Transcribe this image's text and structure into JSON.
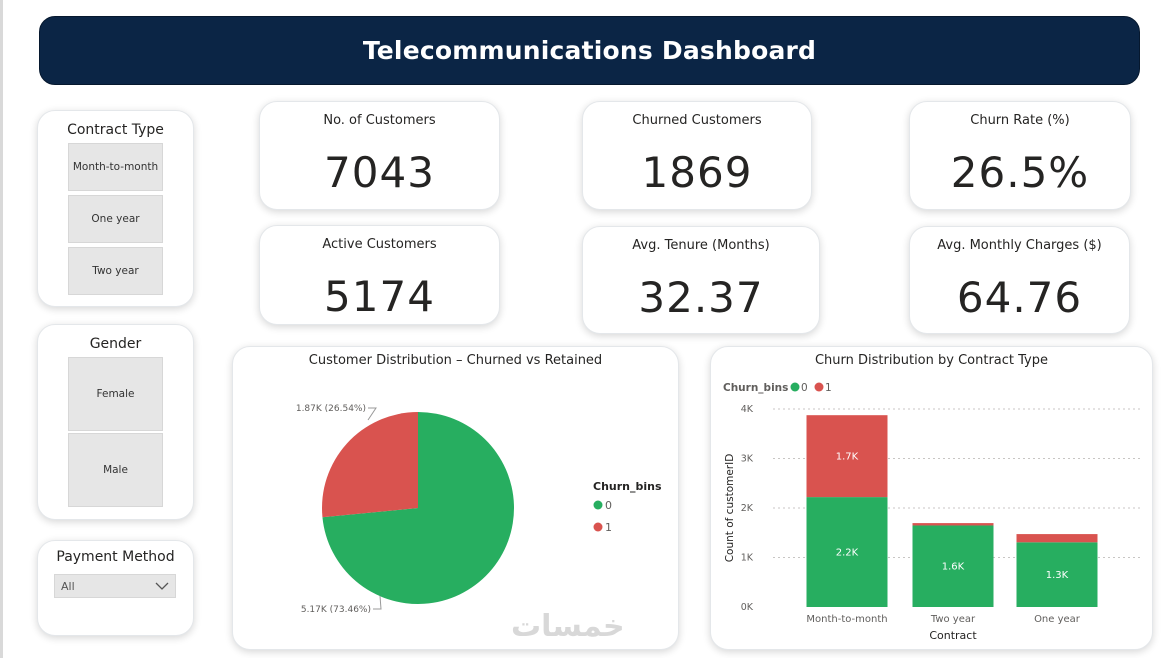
{
  "header": {
    "title": "Telecommunications Dashboard"
  },
  "slicers": {
    "contract": {
      "title": "Contract Type",
      "items": [
        "Month-to-month",
        "One year",
        "Two year"
      ]
    },
    "gender": {
      "title": "Gender",
      "items": [
        "Female",
        "Male"
      ]
    },
    "payment": {
      "title": "Payment Method",
      "selected": "All"
    }
  },
  "kpis": {
    "customers": {
      "label": "No. of Customers",
      "value": "7043"
    },
    "churned": {
      "label": "Churned Customers",
      "value": "1869"
    },
    "churn_rate": {
      "label": "Churn Rate (%)",
      "value": "26.5%"
    },
    "active": {
      "label": "Active Customers",
      "value": "5174"
    },
    "tenure": {
      "label": "Avg. Tenure (Months)",
      "value": "32.37"
    },
    "charges": {
      "label": "Avg. Monthly Charges ($)",
      "value": "64.76"
    }
  },
  "colors": {
    "retained": "#27ae60",
    "churned": "#d9534f",
    "header": "#0b2545"
  },
  "watermark": "خمسات",
  "chart_data": [
    {
      "type": "pie",
      "title": "Customer Distribution – Churned vs Retained",
      "legend_title": "Churn_bins",
      "legend_position": "right",
      "slices": [
        {
          "name": "0",
          "value": 5174,
          "label": "5.17K (73.46%)",
          "color": "#27ae60"
        },
        {
          "name": "1",
          "value": 1869,
          "label": "1.87K (26.54%)",
          "color": "#d9534f"
        }
      ]
    },
    {
      "type": "bar",
      "stacked": true,
      "title": "Churn Distribution by Contract Type",
      "legend_title": "Churn_bins",
      "legend_position": "top-left",
      "xlabel": "Contract",
      "ylabel": "Count of customerID",
      "categories": [
        "Month-to-month",
        "Two year",
        "One year"
      ],
      "ylim": [
        0,
        4000
      ],
      "yticks": [
        "0K",
        "1K",
        "2K",
        "3K",
        "4K"
      ],
      "grid": true,
      "series": [
        {
          "name": "0",
          "color": "#27ae60",
          "values": [
            2220,
            1647,
            1307
          ],
          "labels": [
            "2.2K",
            "1.6K",
            "1.3K"
          ]
        },
        {
          "name": "1",
          "color": "#d9534f",
          "values": [
            1655,
            48,
            166
          ],
          "labels": [
            "1.7K",
            "",
            ""
          ]
        }
      ]
    }
  ]
}
